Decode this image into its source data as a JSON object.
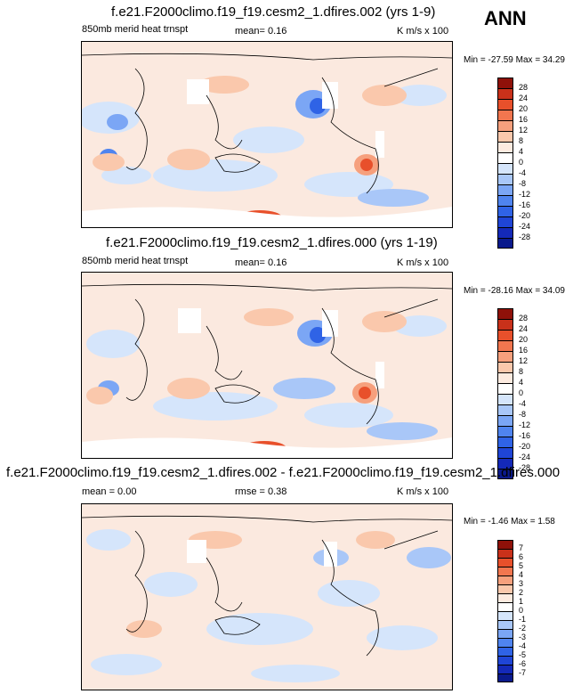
{
  "season": "ANN",
  "colors": {
    "c_m28": "#0a1a8c",
    "c_m24": "#1429b8",
    "c_m20": "#1f45d6",
    "c_m16": "#2f63e6",
    "c_m12": "#4f84ef",
    "c_m8": "#7ba6f5",
    "c_m4": "#a9c7f8",
    "c_0": "#d5e5fb",
    "c_4": "#fdebe0",
    "c_8": "#fac8ac",
    "c_12": "#f6a07d",
    "c_16": "#f2764f",
    "c_20": "#e8502b",
    "c_24": "#c9311a",
    "c_28": "#8f1109",
    "land_missing": "#ffffff"
  },
  "panel1": {
    "title": "f.e21.F2000climo.f19_f19.cesm2_1.dfires.002 (yrs 1-9)",
    "variable": "850mb merid heat trnspt",
    "mean": "mean=  0.16",
    "units": "K m/s x 100",
    "minmax": "Min = -27.59 Max =  34.29"
  },
  "panel2": {
    "title": "f.e21.F2000climo.f19_f19.cesm2_1.dfires.000 (yrs 1-19)",
    "variable": "850mb merid heat trnspt",
    "mean": "mean=  0.16",
    "units": "K m/s x 100",
    "minmax": "Min = -28.16 Max =  34.09"
  },
  "panel3": {
    "title": "f.e21.F2000climo.f19_f19.cesm2_1.dfires.002 - f.e21.F2000climo.f19_f19.cesm2_1.dfires.000",
    "mean": "mean =  0.00",
    "rmse": "rmse =  0.38",
    "units": "K m/s x 100",
    "minmax": "Min =  -1.46 Max =  1.58"
  },
  "colorbar1": [
    "28",
    "24",
    "20",
    "16",
    "12",
    "8",
    "4",
    "0",
    "-4",
    "-8",
    "-12",
    "-16",
    "-20",
    "-24",
    "-28"
  ],
  "colorbar2": [
    "28",
    "24",
    "20",
    "16",
    "12",
    "8",
    "4",
    "0",
    "-4",
    "-8",
    "-12",
    "-16",
    "-20",
    "-24",
    "-28"
  ],
  "colorbar3": [
    "7",
    "6",
    "5",
    "4",
    "3",
    "2",
    "1",
    "0",
    "-1",
    "-2",
    "-3",
    "-4",
    "-5",
    "-6",
    "-7"
  ]
}
